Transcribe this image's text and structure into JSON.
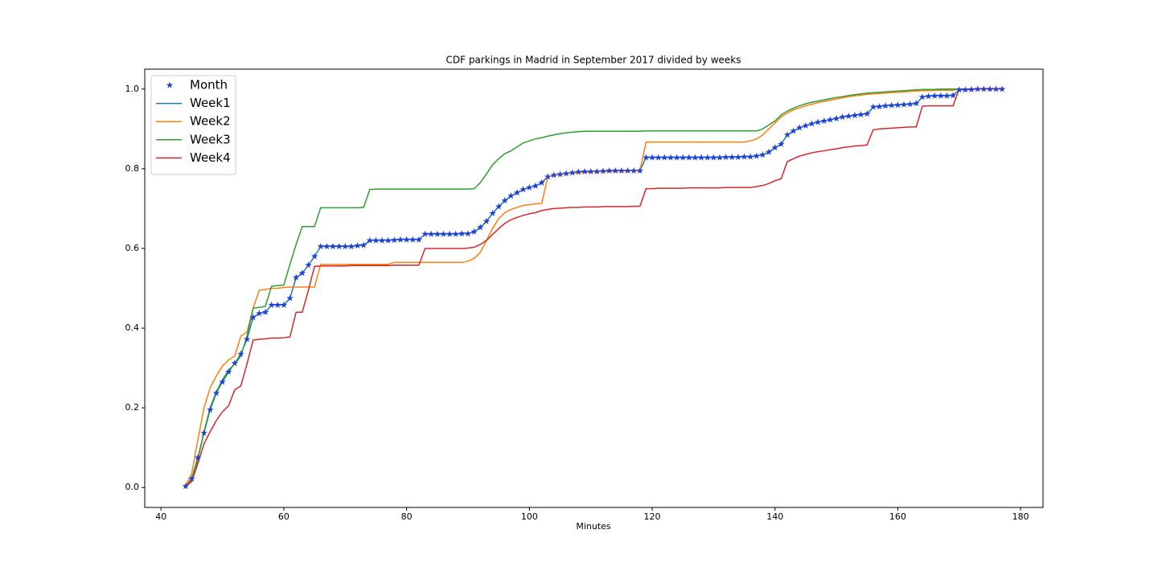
{
  "chart_data": {
    "type": "line",
    "title": "CDF parkings in Madrid in September 2017 divided by weeks",
    "xlabel": "Minutes",
    "xlim": [
      37.35,
      183.65
    ],
    "ylim": [
      -0.05,
      1.05
    ],
    "xticks": [
      40,
      60,
      80,
      100,
      120,
      140,
      160,
      180
    ],
    "yticks": [
      {
        "value": 0,
        "label": "0.0"
      },
      0.2,
      0.4,
      0.6,
      0.8,
      {
        "value": 1,
        "label": "1.0"
      }
    ],
    "grid": false,
    "legend": "upper left",
    "x": [
      44,
      45,
      46,
      47,
      48,
      49,
      50,
      51,
      52,
      53,
      54,
      55,
      56,
      57,
      58,
      59,
      60,
      61,
      62,
      63,
      64,
      65,
      66,
      67,
      68,
      69,
      70,
      71,
      72,
      73,
      74,
      75,
      76,
      77,
      78,
      79,
      80,
      81,
      82,
      83,
      84,
      85,
      86,
      87,
      88,
      89,
      90,
      91,
      92,
      93,
      94,
      95,
      96,
      97,
      98,
      99,
      100,
      101,
      102,
      103,
      104,
      105,
      106,
      107,
      108,
      109,
      110,
      111,
      112,
      113,
      114,
      115,
      116,
      117,
      118,
      119,
      120,
      121,
      122,
      123,
      124,
      125,
      126,
      127,
      128,
      129,
      130,
      131,
      132,
      133,
      134,
      135,
      136,
      137,
      138,
      139,
      140,
      141,
      142,
      143,
      144,
      145,
      146,
      147,
      148,
      149,
      150,
      151,
      152,
      153,
      154,
      155,
      156,
      157,
      158,
      159,
      160,
      161,
      162,
      163,
      164,
      165,
      166,
      167,
      168,
      169,
      170,
      171,
      172,
      173,
      174,
      175,
      176,
      177
    ],
    "series": [
      {
        "name": "Month",
        "color": "#1f3fd8",
        "marker": "star",
        "values": [
          0.003,
          0.022,
          0.075,
          0.137,
          0.195,
          0.237,
          0.265,
          0.29,
          0.312,
          0.335,
          0.372,
          0.427,
          0.437,
          0.44,
          0.458,
          0.458,
          0.458,
          0.475,
          0.527,
          0.538,
          0.558,
          0.58,
          0.605,
          0.605,
          0.605,
          0.605,
          0.605,
          0.605,
          0.607,
          0.608,
          0.62,
          0.62,
          0.62,
          0.62,
          0.621,
          0.622,
          0.622,
          0.622,
          0.622,
          0.636,
          0.636,
          0.636,
          0.636,
          0.636,
          0.636,
          0.637,
          0.637,
          0.642,
          0.653,
          0.668,
          0.688,
          0.705,
          0.72,
          0.732,
          0.74,
          0.748,
          0.753,
          0.757,
          0.765,
          0.78,
          0.784,
          0.786,
          0.788,
          0.79,
          0.792,
          0.793,
          0.793,
          0.793,
          0.794,
          0.795,
          0.795,
          0.795,
          0.795,
          0.795,
          0.795,
          0.828,
          0.828,
          0.828,
          0.828,
          0.828,
          0.828,
          0.828,
          0.828,
          0.828,
          0.828,
          0.828,
          0.828,
          0.828,
          0.829,
          0.829,
          0.829,
          0.83,
          0.83,
          0.832,
          0.835,
          0.842,
          0.853,
          0.862,
          0.885,
          0.895,
          0.903,
          0.908,
          0.913,
          0.917,
          0.92,
          0.923,
          0.926,
          0.93,
          0.932,
          0.934,
          0.936,
          0.938,
          0.955,
          0.956,
          0.958,
          0.959,
          0.96,
          0.961,
          0.962,
          0.964,
          0.98,
          0.982,
          0.983,
          0.983,
          0.983,
          0.984,
          0.998,
          0.998,
          0.999,
          1.0,
          1.0,
          1.0,
          1.0,
          1.0
        ]
      },
      {
        "name": "Week1",
        "color": "#1f77b4",
        "marker": "line",
        "values": [
          0.003,
          0.022,
          0.075,
          0.137,
          0.195,
          0.237,
          0.265,
          0.29,
          0.312,
          0.335,
          0.372,
          0.427,
          0.437,
          0.44,
          0.458,
          0.458,
          0.458,
          0.475,
          0.527,
          0.538,
          0.558,
          0.58,
          0.605,
          0.605,
          0.605,
          0.605,
          0.605,
          0.605,
          0.607,
          0.608,
          0.62,
          0.62,
          0.62,
          0.62,
          0.621,
          0.622,
          0.622,
          0.622,
          0.622,
          0.636,
          0.636,
          0.636,
          0.636,
          0.636,
          0.636,
          0.637,
          0.637,
          0.642,
          0.653,
          0.668,
          0.688,
          0.705,
          0.72,
          0.732,
          0.74,
          0.748,
          0.753,
          0.757,
          0.765,
          0.78,
          0.784,
          0.786,
          0.788,
          0.79,
          0.792,
          0.793,
          0.793,
          0.793,
          0.794,
          0.795,
          0.795,
          0.795,
          0.795,
          0.795,
          0.795,
          0.828,
          0.828,
          0.828,
          0.828,
          0.828,
          0.828,
          0.828,
          0.828,
          0.828,
          0.828,
          0.828,
          0.828,
          0.828,
          0.829,
          0.829,
          0.829,
          0.83,
          0.83,
          0.832,
          0.835,
          0.842,
          0.853,
          0.862,
          0.885,
          0.895,
          0.903,
          0.908,
          0.913,
          0.917,
          0.92,
          0.923,
          0.926,
          0.93,
          0.932,
          0.934,
          0.936,
          0.938,
          0.955,
          0.956,
          0.958,
          0.959,
          0.96,
          0.961,
          0.962,
          0.964,
          0.98,
          0.982,
          0.983,
          0.983,
          0.983,
          0.984,
          0.998,
          0.998,
          0.999,
          1.0,
          1.0,
          1.0,
          1.0,
          1.0
        ]
      },
      {
        "name": "Week2",
        "color": "#ff7f0e",
        "marker": "line",
        "values": [
          0.005,
          0.035,
          0.12,
          0.2,
          0.25,
          0.28,
          0.305,
          0.32,
          0.33,
          0.38,
          0.39,
          0.45,
          0.495,
          0.497,
          0.5,
          0.5,
          0.502,
          0.503,
          0.503,
          0.503,
          0.503,
          0.503,
          0.56,
          0.56,
          0.56,
          0.56,
          0.56,
          0.56,
          0.56,
          0.56,
          0.56,
          0.56,
          0.56,
          0.56,
          0.565,
          0.565,
          0.565,
          0.565,
          0.565,
          0.565,
          0.565,
          0.565,
          0.565,
          0.565,
          0.565,
          0.565,
          0.568,
          0.575,
          0.59,
          0.62,
          0.65,
          0.675,
          0.69,
          0.698,
          0.703,
          0.708,
          0.71,
          0.712,
          0.713,
          0.78,
          0.783,
          0.785,
          0.787,
          0.789,
          0.79,
          0.791,
          0.792,
          0.792,
          0.793,
          0.793,
          0.794,
          0.794,
          0.794,
          0.795,
          0.795,
          0.867,
          0.867,
          0.867,
          0.867,
          0.867,
          0.867,
          0.867,
          0.867,
          0.867,
          0.867,
          0.867,
          0.867,
          0.867,
          0.867,
          0.867,
          0.867,
          0.867,
          0.87,
          0.875,
          0.885,
          0.9,
          0.915,
          0.93,
          0.94,
          0.948,
          0.953,
          0.958,
          0.962,
          0.966,
          0.969,
          0.972,
          0.975,
          0.978,
          0.981,
          0.983,
          0.985,
          0.987,
          0.988,
          0.989,
          0.99,
          0.991,
          0.992,
          0.993,
          0.994,
          0.995,
          0.996,
          0.996,
          0.997,
          0.997,
          0.997,
          0.997,
          1.0,
          1.0,
          1.0,
          1.0,
          1.0,
          1.0,
          1.0,
          1.0
        ]
      },
      {
        "name": "Week3",
        "color": "#2ca02c",
        "marker": "line",
        "values": [
          0.003,
          0.02,
          0.07,
          0.14,
          0.2,
          0.24,
          0.27,
          0.295,
          0.31,
          0.33,
          0.38,
          0.45,
          0.452,
          0.455,
          0.505,
          0.507,
          0.508,
          0.56,
          0.61,
          0.655,
          0.655,
          0.655,
          0.702,
          0.702,
          0.702,
          0.702,
          0.702,
          0.702,
          0.702,
          0.703,
          0.748,
          0.749,
          0.749,
          0.749,
          0.749,
          0.749,
          0.749,
          0.749,
          0.749,
          0.749,
          0.749,
          0.749,
          0.749,
          0.749,
          0.749,
          0.749,
          0.749,
          0.75,
          0.765,
          0.787,
          0.81,
          0.825,
          0.838,
          0.845,
          0.855,
          0.865,
          0.87,
          0.875,
          0.878,
          0.882,
          0.885,
          0.888,
          0.89,
          0.892,
          0.893,
          0.894,
          0.894,
          0.894,
          0.894,
          0.894,
          0.894,
          0.894,
          0.894,
          0.894,
          0.894,
          0.895,
          0.895,
          0.895,
          0.895,
          0.895,
          0.895,
          0.895,
          0.895,
          0.895,
          0.895,
          0.895,
          0.895,
          0.895,
          0.895,
          0.895,
          0.895,
          0.895,
          0.895,
          0.895,
          0.9,
          0.91,
          0.92,
          0.935,
          0.945,
          0.952,
          0.958,
          0.963,
          0.967,
          0.97,
          0.973,
          0.976,
          0.979,
          0.981,
          0.984,
          0.986,
          0.988,
          0.99,
          0.991,
          0.992,
          0.993,
          0.994,
          0.995,
          0.996,
          0.997,
          0.998,
          0.999,
          0.999,
          0.999,
          1.0,
          1.0,
          1.0,
          1.0,
          1.0,
          1.0,
          1.0,
          1.0,
          1.0,
          1.0,
          1.0
        ]
      },
      {
        "name": "Week4",
        "color": "#d62728",
        "marker": "line",
        "values": [
          0.002,
          0.015,
          0.06,
          0.11,
          0.14,
          0.168,
          0.19,
          0.205,
          0.245,
          0.255,
          0.31,
          0.37,
          0.372,
          0.373,
          0.375,
          0.375,
          0.376,
          0.378,
          0.44,
          0.44,
          0.495,
          0.555,
          0.556,
          0.556,
          0.556,
          0.556,
          0.556,
          0.557,
          0.557,
          0.557,
          0.557,
          0.557,
          0.557,
          0.557,
          0.558,
          0.558,
          0.558,
          0.558,
          0.558,
          0.6,
          0.6,
          0.6,
          0.6,
          0.6,
          0.6,
          0.6,
          0.601,
          0.603,
          0.61,
          0.62,
          0.635,
          0.65,
          0.663,
          0.672,
          0.678,
          0.683,
          0.687,
          0.69,
          0.695,
          0.698,
          0.7,
          0.701,
          0.702,
          0.703,
          0.703,
          0.704,
          0.704,
          0.704,
          0.705,
          0.705,
          0.705,
          0.705,
          0.705,
          0.706,
          0.706,
          0.75,
          0.75,
          0.751,
          0.751,
          0.751,
          0.751,
          0.751,
          0.752,
          0.752,
          0.752,
          0.752,
          0.752,
          0.752,
          0.753,
          0.753,
          0.753,
          0.753,
          0.753,
          0.755,
          0.758,
          0.763,
          0.77,
          0.775,
          0.818,
          0.825,
          0.832,
          0.836,
          0.84,
          0.843,
          0.845,
          0.848,
          0.85,
          0.853,
          0.855,
          0.857,
          0.858,
          0.86,
          0.898,
          0.9,
          0.901,
          0.902,
          0.903,
          0.904,
          0.905,
          0.905,
          0.957,
          0.958,
          0.958,
          0.958,
          0.958,
          0.958,
          1.0,
          1.0,
          1.0,
          1.0,
          1.0,
          1.0,
          1.0,
          1.0
        ]
      }
    ]
  }
}
